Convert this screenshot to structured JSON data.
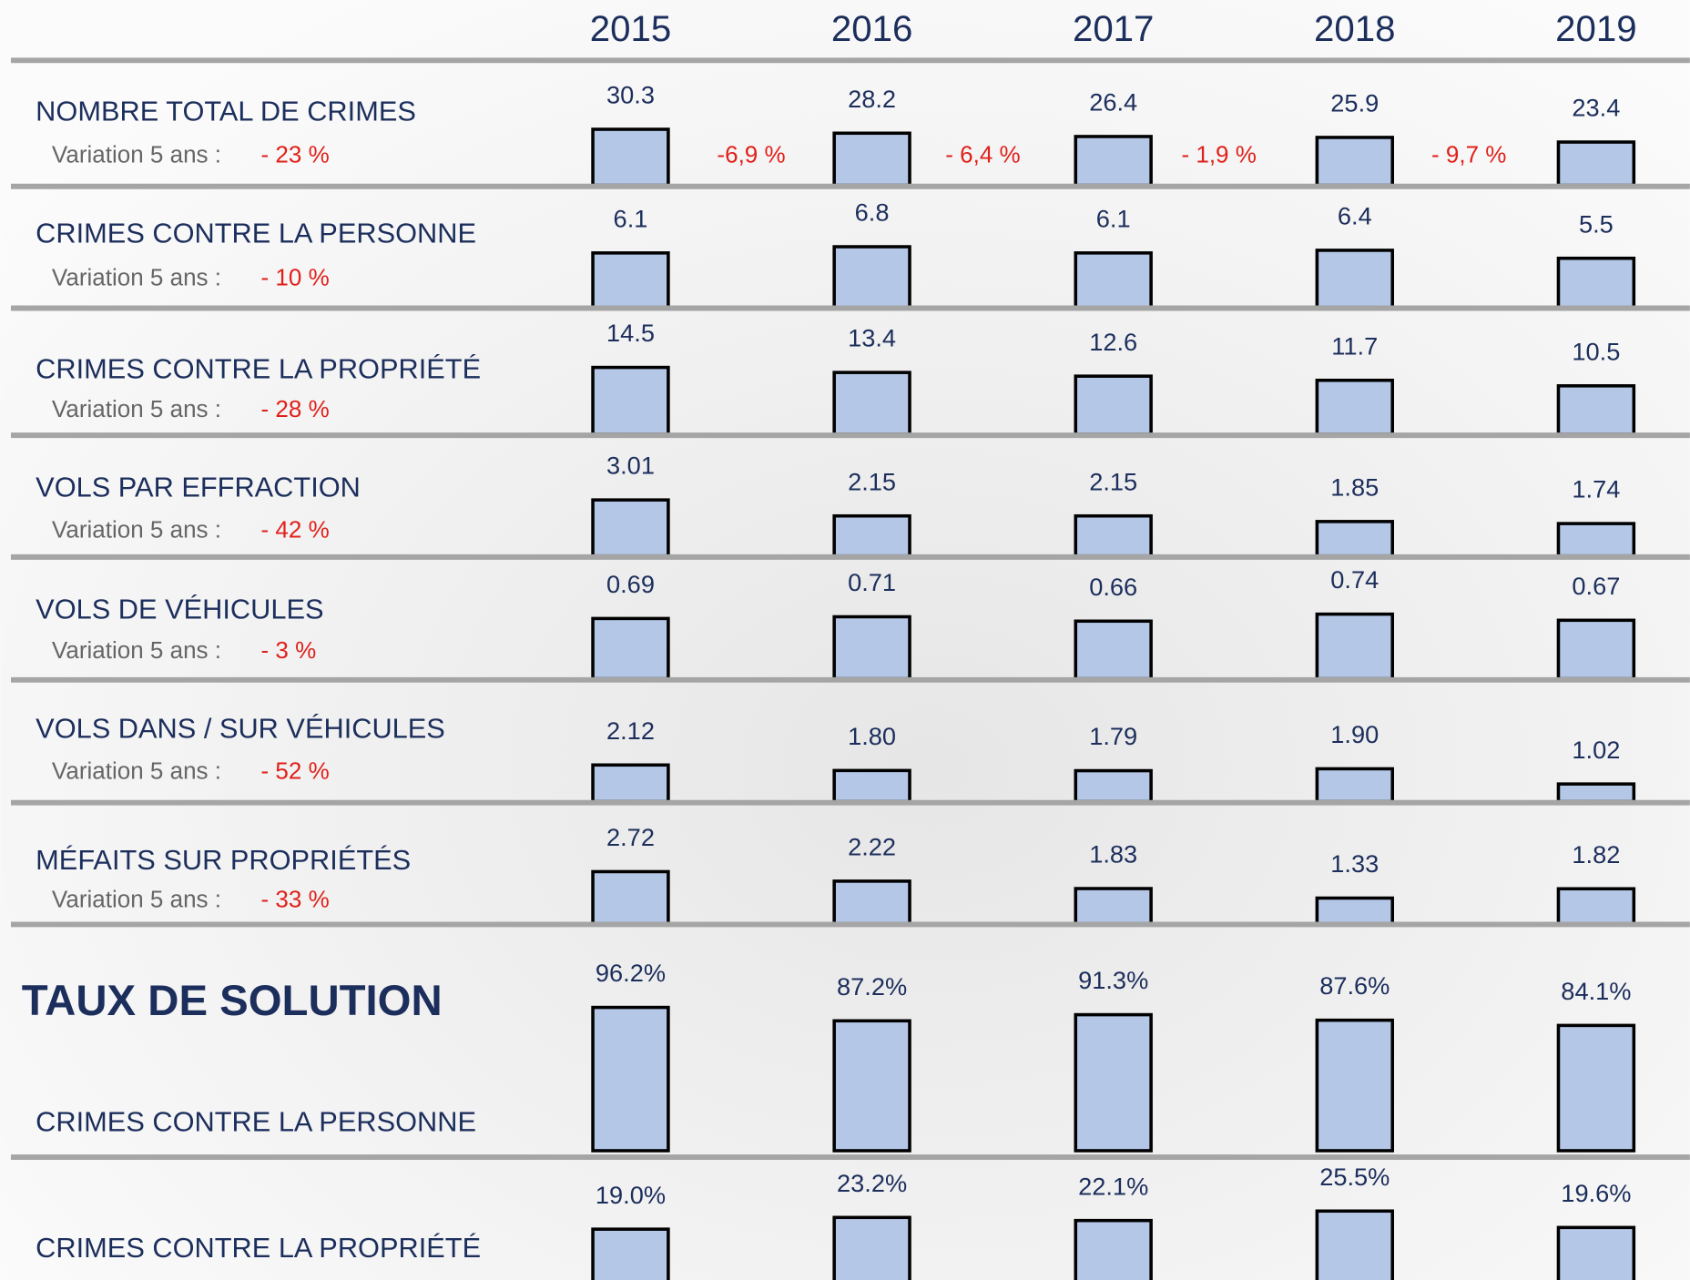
{
  "years": [
    "2015",
    "2016",
    "2017",
    "2018",
    "2019"
  ],
  "rows": [
    {
      "label": "NOMBRE TOTAL DE CRIMES",
      "variation_label": "Variation 5 ans :",
      "variation": "- 23 %",
      "values": [
        "30.3",
        "28.2",
        "26.4",
        "25.9",
        "23.4"
      ]
    },
    {
      "label": "CRIMES CONTRE LA PERSONNE",
      "variation_label": "Variation 5 ans :",
      "variation": "- 10 %",
      "values": [
        "6.1",
        "6.8",
        "6.1",
        "6.4",
        "5.5"
      ]
    },
    {
      "label": "CRIMES CONTRE LA PROPRIÉTÉ",
      "variation_label": "Variation 5 ans :",
      "variation": "- 28 %",
      "values": [
        "14.5",
        "13.4",
        "12.6",
        "11.7",
        "10.5"
      ]
    },
    {
      "label": "VOLS PAR EFFRACTION",
      "variation_label": "Variation 5 ans :",
      "variation": "- 42 %",
      "values": [
        "3.01",
        "2.15",
        "2.15",
        "1.85",
        "1.74"
      ]
    },
    {
      "label": "VOLS DE VÉHICULES",
      "variation_label": "Variation 5 ans :",
      "variation": "- 3 %",
      "values": [
        "0.69",
        "0.71",
        "0.66",
        "0.74",
        "0.67"
      ]
    },
    {
      "label": "VOLS DANS / SUR VÉHICULES",
      "variation_label": "Variation 5 ans :",
      "variation": "- 52 %",
      "values": [
        "2.12",
        "1.80",
        "1.79",
        "1.90",
        "1.02"
      ]
    },
    {
      "label": "MÉFAITS SUR PROPRIÉTÉS",
      "variation_label": "Variation 5 ans :",
      "variation": "- 33 %",
      "values": [
        "2.72",
        "2.22",
        "1.83",
        "1.33",
        "1.82"
      ]
    }
  ],
  "changes": [
    "-6,9 %",
    "- 6,4 %",
    "- 1,9 %",
    "- 9,7 %"
  ],
  "section_title": "TAUX DE SOLUTION",
  "solution_rows": [
    {
      "label": "CRIMES CONTRE LA PERSONNE",
      "values": [
        "96.2%",
        "87.2%",
        "91.3%",
        "87.6%",
        "84.1%"
      ]
    },
    {
      "label": "CRIMES CONTRE LA PROPRIÉTÉ",
      "values": [
        "19.0%",
        "23.2%",
        "22.1%",
        "25.5%",
        "19.6%"
      ]
    }
  ]
}
